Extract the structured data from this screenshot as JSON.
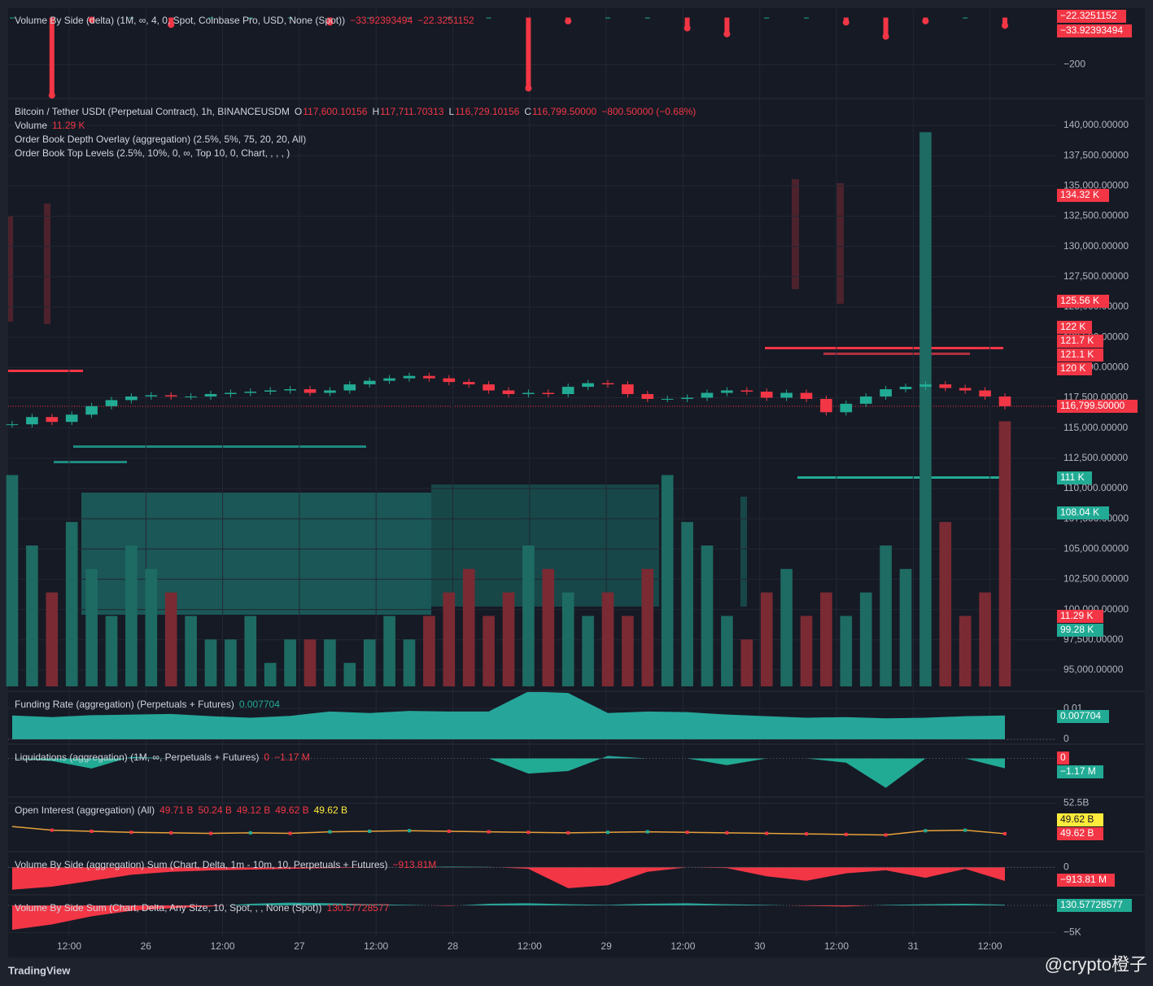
{
  "chart_data": [
    {
      "type": "bar",
      "title": "Volume By Side (delta) (1M, ∞, 4, 0, Spot, Coinbase Pro, USD, None (Spot))",
      "legend_values": [
        "−33.92393494",
        "−22.3251152"
      ],
      "values": [
        0,
        -330,
        -10,
        0,
        -30,
        0,
        0,
        0,
        -20,
        0,
        0,
        0,
        0,
        -300,
        -15,
        0,
        0,
        -45,
        -70,
        0,
        0,
        -20,
        -80,
        -15,
        0,
        -33.92393494
      ],
      "ylim": [
        -340,
        40
      ],
      "yticks": [
        {
          "value": -200,
          "label": "−200"
        }
      ]
    },
    {
      "type": "candlestick",
      "title": "Bitcoin / Tether USDt (Perpetual Contract), 1h, BINANCEUSDM",
      "ohlc_legend": [
        "O",
        "117,600.10156",
        "H",
        "117,711.70313",
        "L",
        "116,729.10156",
        "C",
        "116,799.50000",
        "−800.50000 (−0.68%)"
      ],
      "volume_legend": [
        "Volume",
        "11.29 K"
      ],
      "indicators": [
        "Order Book Depth Overlay (aggregation) (2.5%, 5%, 75, 20, 20, All)",
        "Order Book Top Levels (2.5%, 10%, 0, ∞, Top 10, 0, Chart, , , , )"
      ],
      "values": [
        115300,
        115900,
        115500,
        116100,
        116800,
        117300,
        117600,
        117700,
        117600,
        117600,
        117800,
        117900,
        118000,
        118100,
        118200,
        117900,
        118100,
        118600,
        118900,
        119100,
        119300,
        119100,
        118800,
        118600,
        118100,
        117800,
        117900,
        117800,
        118400,
        118700,
        118600,
        117800,
        117400,
        117400,
        117500,
        117900,
        118100,
        118000,
        117500,
        117900,
        117400,
        116300,
        117000,
        117600,
        118200,
        118400,
        118600,
        118300,
        118100,
        117600,
        116799.5
      ],
      "volume": [
        9,
        6,
        4,
        7,
        5,
        3,
        6,
        5,
        4,
        3,
        2,
        2,
        3,
        1,
        2,
        2,
        2,
        1,
        2,
        3,
        2,
        3,
        4,
        5,
        3,
        4,
        6,
        5,
        4,
        3,
        4,
        3,
        5,
        9,
        7,
        6,
        3,
        2,
        4,
        5,
        3,
        4,
        3,
        4,
        6,
        5,
        23.6,
        7,
        3,
        4,
        11.29
      ],
      "volume_ylim": [
        0,
        25
      ],
      "ylim": [
        93650,
        142150
      ],
      "yticks": [
        {
          "value": 140000,
          "label": "140,000.00000"
        },
        {
          "value": 137500,
          "label": "137,500.00000"
        },
        {
          "value": 135000,
          "label": "135,000.00000"
        },
        {
          "value": 132500,
          "label": "132,500.00000"
        },
        {
          "value": 130000,
          "label": "130,000.00000"
        },
        {
          "value": 127500,
          "label": "127,500.00000"
        },
        {
          "value": 125000,
          "label": "125,000.00000"
        },
        {
          "value": 122500,
          "label": "122,500.00000"
        },
        {
          "value": 120000,
          "label": "120,000.00000"
        },
        {
          "value": 117500,
          "label": "117,500.00000"
        },
        {
          "value": 115000,
          "label": "115,000.00000"
        },
        {
          "value": 112500,
          "label": "112,500.00000"
        },
        {
          "value": 110000,
          "label": "110,000.00000"
        },
        {
          "value": 107500,
          "label": "107,500.00000"
        },
        {
          "value": 105000,
          "label": "105,000.00000"
        },
        {
          "value": 102500,
          "label": "102,500.00000"
        },
        {
          "value": 100000,
          "label": "100,000.00000"
        },
        {
          "value": 97500,
          "label": "97,500.00000"
        },
        {
          "value": 95000,
          "label": "95,000.00000"
        }
      ]
    },
    {
      "type": "area",
      "title": "Funding Rate (aggregation) (Perpetuals + Futures)",
      "legend_values": [
        "0.007704"
      ],
      "color": "#26a69a",
      "values": [
        0.0077,
        0.0072,
        0.0078,
        0.008,
        0.0082,
        0.0075,
        0.007,
        0.0076,
        0.009,
        0.0085,
        0.0092,
        0.009,
        0.009,
        0.0155,
        0.015,
        0.0085,
        0.009,
        0.0088,
        0.008,
        0.0075,
        0.007,
        0.0072,
        0.0068,
        0.007,
        0.0075,
        0.007704
      ],
      "ylim": [
        0,
        0.0153
      ],
      "yticks": [
        0,
        0.01
      ]
    },
    {
      "type": "area",
      "title": "Liquidations (aggregation) (1M, ∞, Perpetuals + Futures)",
      "legend_values": [
        "0",
        "−1.17 M"
      ],
      "color": "#26a69a",
      "values": [
        0,
        -0.3,
        -1.2,
        0.2,
        0,
        0,
        0,
        0,
        0,
        0,
        0,
        0,
        0,
        -1.8,
        -1.5,
        0.3,
        0,
        0,
        -0.8,
        0,
        0,
        -0.5,
        -3.5,
        0,
        0,
        -1.17
      ],
      "ylim": [
        -4.5,
        1.6
      ],
      "yticks": []
    },
    {
      "type": "line",
      "title": "Open Interest (aggregation) (All)",
      "legend_values": [
        "49.71 B",
        "50.24 B",
        "49.12 B",
        "49.62 B",
        "49.62 B"
      ],
      "color": "#e8a23a",
      "values": [
        50.3,
        49.95,
        49.85,
        49.75,
        49.7,
        49.65,
        49.7,
        49.65,
        49.8,
        49.85,
        49.9,
        49.85,
        49.8,
        49.75,
        49.7,
        49.75,
        49.8,
        49.75,
        49.7,
        49.65,
        49.6,
        49.55,
        49.5,
        49.9,
        49.95,
        49.62
      ],
      "ylim": [
        48,
        53
      ],
      "yticks": [
        {
          "value": 52.5,
          "label": "52.5B"
        }
      ]
    },
    {
      "type": "area",
      "title": "Volume By Side (aggregation) Sum (Chart, Delta, 1m - 10m, 10, Perpetuals + Futures)",
      "legend_values": [
        "−913.81M"
      ],
      "color": "#26a69a",
      "values": [
        -1500,
        -1300,
        -900,
        -500,
        -300,
        -200,
        -150,
        -100,
        -50,
        -20,
        0,
        50,
        30,
        -100,
        -1400,
        -1200,
        -300,
        0,
        -50,
        -600,
        -900,
        -400,
        -200,
        -700,
        -100,
        -913.81
      ],
      "ylim": [
        -1900,
        1000
      ],
      "yticks": [
        0
      ]
    },
    {
      "type": "area",
      "title": "Volume By Side Sum (Chart, Delta, Any Size, 10, Spot, , , None (Spot))",
      "legend_values": [
        "130.57728577"
      ],
      "color": "#26a69a",
      "values": [
        -4500,
        -3500,
        -2000,
        -1000,
        -500,
        -200,
        300,
        500,
        400,
        200,
        100,
        -100,
        300,
        400,
        200,
        100,
        300,
        400,
        200,
        100,
        -100,
        -200,
        100,
        200,
        300,
        130.57728577
      ],
      "ylim": [
        -5400,
        1800
      ],
      "yticks": [
        {
          "value": -5000,
          "label": "−5K"
        }
      ]
    }
  ],
  "badges": [
    {
      "label": "−22.3251152",
      "color": "#f23645"
    },
    {
      "label": "−33.92393494",
      "color": "#f23645"
    },
    {
      "label": "134.32 K",
      "color": "#f23645"
    },
    {
      "label": "125.56 K",
      "color": "#f23645"
    },
    {
      "label": "122 K",
      "color": "#f23645"
    },
    {
      "label": "121.7 K",
      "color": "#f23645"
    },
    {
      "label": "121.1 K",
      "color": "#f23645"
    },
    {
      "label": "120 K",
      "color": "#f23645"
    },
    {
      "label": "116,799.50000",
      "color": "#f23645"
    },
    {
      "label": "111 K",
      "color": "#22ab94"
    },
    {
      "label": "108.04 K",
      "color": "#22ab94"
    },
    {
      "label": "11.29 K",
      "color": "#f23645"
    },
    {
      "label": "99.28 K",
      "color": "#22ab94"
    },
    {
      "label": "0.007704",
      "color": "#22ab94"
    },
    {
      "label": "0",
      "color": "#f23645"
    },
    {
      "label": "−1.17 M",
      "color": "#22ab94"
    },
    {
      "label": "49.62 B",
      "color": "#ffeb3b"
    },
    {
      "label": "49.62 B",
      "color": "#f23645"
    },
    {
      "label": "−913.81 M",
      "color": "#f23645"
    },
    {
      "label": "130.57728577",
      "color": "#22ab94"
    }
  ],
  "time_axis": [
    "12:00",
    "26",
    "12:00",
    "27",
    "12:00",
    "28",
    "12:00",
    "29",
    "12:00",
    "30",
    "12:00",
    "31",
    "12:00"
  ],
  "brand": "TradingView",
  "watermark": "@crypto橙子"
}
